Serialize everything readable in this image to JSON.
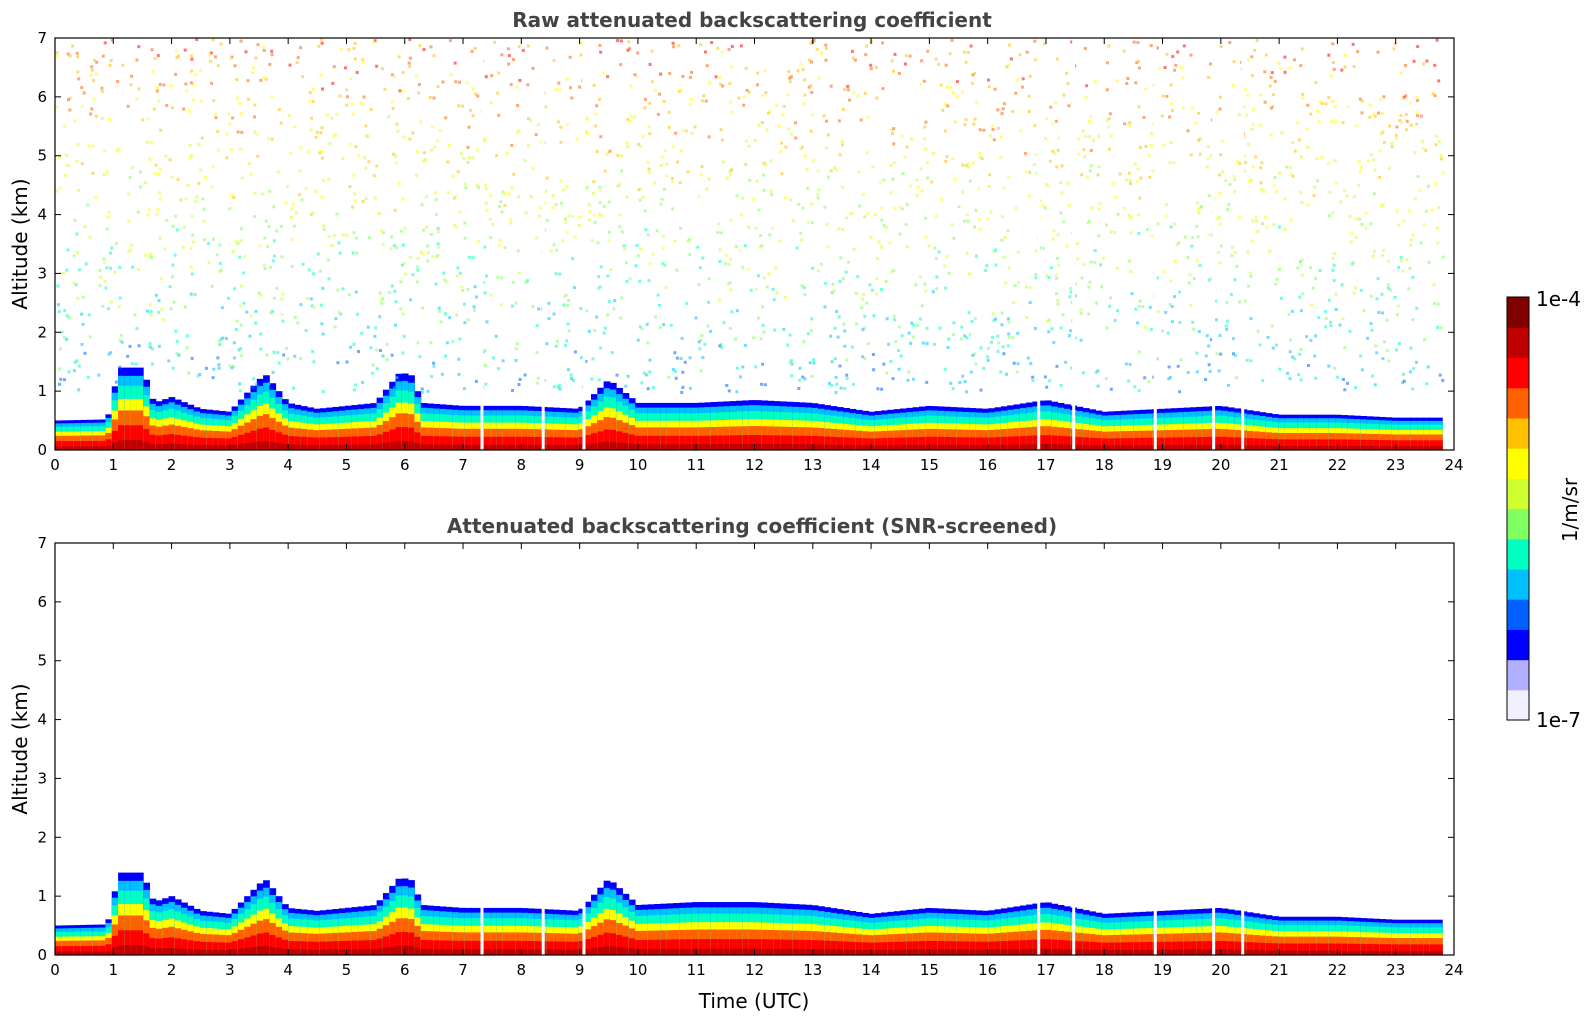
{
  "chart_data": [
    {
      "type": "heatmap",
      "title": "Raw attenuated backscattering coefficient",
      "xlabel": "",
      "ylabel": "Altitude (km)",
      "xlim": [
        0,
        24
      ],
      "ylim": [
        0,
        7
      ],
      "xticks": [
        "0",
        "1",
        "2",
        "3",
        "4",
        "5",
        "6",
        "7",
        "8",
        "9",
        "10",
        "11",
        "12",
        "13",
        "14",
        "15",
        "16",
        "17",
        "18",
        "19",
        "20",
        "21",
        "22",
        "23",
        "24"
      ],
      "yticks": [
        "0",
        "1",
        "2",
        "3",
        "4",
        "5",
        "6",
        "7"
      ],
      "screened": false,
      "boundary_layer_top_km": [
        {
          "t": 0.0,
          "h": 0.5
        },
        {
          "t": 0.9,
          "h": 0.52
        },
        {
          "t": 1.1,
          "h": 1.4
        },
        {
          "t": 1.5,
          "h": 1.4
        },
        {
          "t": 1.7,
          "h": 0.8
        },
        {
          "t": 2.0,
          "h": 0.9
        },
        {
          "t": 2.5,
          "h": 0.7
        },
        {
          "t": 3.0,
          "h": 0.65
        },
        {
          "t": 3.6,
          "h": 1.3
        },
        {
          "t": 4.0,
          "h": 0.8
        },
        {
          "t": 4.5,
          "h": 0.7
        },
        {
          "t": 5.0,
          "h": 0.75
        },
        {
          "t": 5.5,
          "h": 0.8
        },
        {
          "t": 5.9,
          "h": 1.3
        },
        {
          "t": 6.1,
          "h": 1.3
        },
        {
          "t": 6.3,
          "h": 0.8
        },
        {
          "t": 7.0,
          "h": 0.75
        },
        {
          "t": 8.0,
          "h": 0.75
        },
        {
          "t": 9.0,
          "h": 0.7
        },
        {
          "t": 9.5,
          "h": 1.2
        },
        {
          "t": 10.0,
          "h": 0.8
        },
        {
          "t": 11.0,
          "h": 0.8
        },
        {
          "t": 12.0,
          "h": 0.85
        },
        {
          "t": 13.0,
          "h": 0.8
        },
        {
          "t": 14.0,
          "h": 0.65
        },
        {
          "t": 15.0,
          "h": 0.75
        },
        {
          "t": 16.0,
          "h": 0.7
        },
        {
          "t": 17.0,
          "h": 0.85
        },
        {
          "t": 18.0,
          "h": 0.65
        },
        {
          "t": 19.0,
          "h": 0.7
        },
        {
          "t": 20.0,
          "h": 0.75
        },
        {
          "t": 21.0,
          "h": 0.6
        },
        {
          "t": 22.0,
          "h": 0.6
        },
        {
          "t": 23.0,
          "h": 0.55
        },
        {
          "t": 23.8,
          "h": 0.55
        }
      ]
    },
    {
      "type": "heatmap",
      "title": "Attenuated backscattering coefficient (SNR-screened)",
      "xlabel": "Time (UTC)",
      "ylabel": "Altitude (km)",
      "xlim": [
        0,
        24
      ],
      "ylim": [
        0,
        7
      ],
      "xticks": [
        "0",
        "1",
        "2",
        "3",
        "4",
        "5",
        "6",
        "7",
        "8",
        "9",
        "10",
        "11",
        "12",
        "13",
        "14",
        "15",
        "16",
        "17",
        "18",
        "19",
        "20",
        "21",
        "22",
        "23",
        "24"
      ],
      "yticks": [
        "0",
        "1",
        "2",
        "3",
        "4",
        "5",
        "6",
        "7"
      ],
      "screened": true,
      "boundary_layer_top_km": [
        {
          "t": 0.0,
          "h": 0.5
        },
        {
          "t": 0.9,
          "h": 0.52
        },
        {
          "t": 1.1,
          "h": 1.4
        },
        {
          "t": 1.5,
          "h": 1.4
        },
        {
          "t": 1.7,
          "h": 0.9
        },
        {
          "t": 2.0,
          "h": 1.0
        },
        {
          "t": 2.5,
          "h": 0.75
        },
        {
          "t": 3.0,
          "h": 0.7
        },
        {
          "t": 3.6,
          "h": 1.3
        },
        {
          "t": 4.0,
          "h": 0.8
        },
        {
          "t": 4.5,
          "h": 0.75
        },
        {
          "t": 5.0,
          "h": 0.8
        },
        {
          "t": 5.5,
          "h": 0.85
        },
        {
          "t": 5.9,
          "h": 1.3
        },
        {
          "t": 6.1,
          "h": 1.3
        },
        {
          "t": 6.3,
          "h": 0.85
        },
        {
          "t": 7.0,
          "h": 0.8
        },
        {
          "t": 8.0,
          "h": 0.8
        },
        {
          "t": 9.0,
          "h": 0.75
        },
        {
          "t": 9.5,
          "h": 1.3
        },
        {
          "t": 10.0,
          "h": 0.85
        },
        {
          "t": 11.0,
          "h": 0.9
        },
        {
          "t": 12.0,
          "h": 0.9
        },
        {
          "t": 13.0,
          "h": 0.85
        },
        {
          "t": 14.0,
          "h": 0.7
        },
        {
          "t": 15.0,
          "h": 0.8
        },
        {
          "t": 16.0,
          "h": 0.75
        },
        {
          "t": 17.0,
          "h": 0.9
        },
        {
          "t": 18.0,
          "h": 0.7
        },
        {
          "t": 19.0,
          "h": 0.75
        },
        {
          "t": 20.0,
          "h": 0.8
        },
        {
          "t": 21.0,
          "h": 0.65
        },
        {
          "t": 22.0,
          "h": 0.65
        },
        {
          "t": 23.0,
          "h": 0.6
        },
        {
          "t": 23.8,
          "h": 0.6
        }
      ]
    }
  ],
  "colorbar": {
    "label": "1/m/sr",
    "max_label": "1e-4",
    "min_label": "1e-7",
    "scale": "log",
    "colormap": [
      "#f0f0ff",
      "#b0b0ff",
      "#0000ff",
      "#0060ff",
      "#00c0ff",
      "#00ffc0",
      "#80ff60",
      "#d0ff30",
      "#ffff00",
      "#ffc000",
      "#ff6000",
      "#ff0000",
      "#c00000",
      "#800000"
    ]
  }
}
